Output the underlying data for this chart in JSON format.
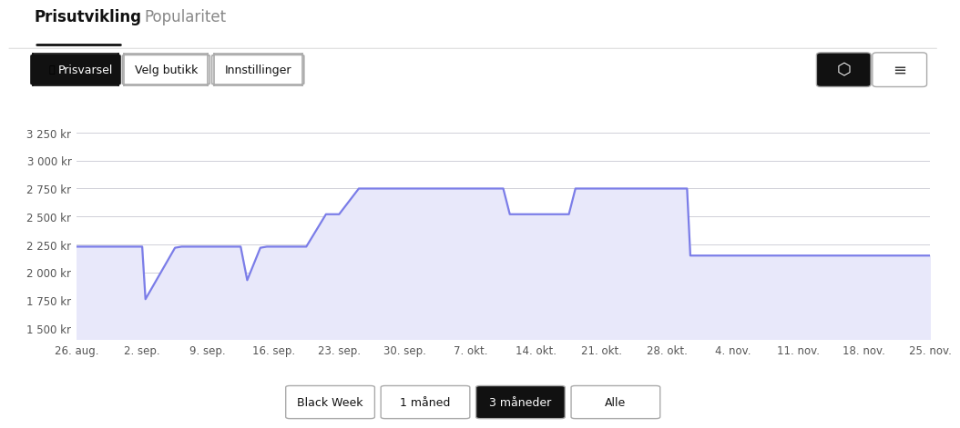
{
  "title": "Prisutvikling",
  "tab2": "Popularitet",
  "y_ticks": [
    1500,
    1750,
    2000,
    2250,
    2500,
    2750,
    3000,
    3250
  ],
  "y_labels": [
    "1 500 kr",
    "1 750 kr",
    "2 000 kr",
    "2 250 kr",
    "2 500 kr",
    "2 750 kr",
    "3 000 kr",
    "3 250 kr"
  ],
  "x_labels": [
    "26. aug.",
    "2. sep.",
    "9. sep.",
    "16. sep.",
    "23. sep.",
    "30. sep.",
    "7. okt.",
    "14. okt.",
    "21. okt.",
    "28. okt.",
    "4. nov.",
    "11. nov.",
    "18. nov.",
    "25. nov."
  ],
  "ylim": [
    1400,
    3400
  ],
  "xlim": [
    0,
    13
  ],
  "line_color": "#7B7DE8",
  "fill_color": "#E8E8FA",
  "bg_color": "#ffffff",
  "grid_color": "#d0d0d8",
  "price_data": [
    [
      0.0,
      2230
    ],
    [
      0.9,
      2230
    ],
    [
      1.0,
      2230
    ],
    [
      1.05,
      1760
    ],
    [
      1.5,
      2220
    ],
    [
      1.6,
      2230
    ],
    [
      2.5,
      2230
    ],
    [
      2.6,
      1930
    ],
    [
      2.8,
      2220
    ],
    [
      2.9,
      2230
    ],
    [
      3.5,
      2230
    ],
    [
      3.8,
      2520
    ],
    [
      4.0,
      2520
    ],
    [
      4.3,
      2750
    ],
    [
      4.5,
      2750
    ],
    [
      6.5,
      2750
    ],
    [
      6.6,
      2520
    ],
    [
      7.5,
      2520
    ],
    [
      7.6,
      2750
    ],
    [
      8.5,
      2750
    ],
    [
      9.2,
      2750
    ],
    [
      9.3,
      2750
    ],
    [
      9.35,
      2150
    ],
    [
      10.0,
      2150
    ],
    [
      13.0,
      2150
    ]
  ],
  "buttons_bottom": [
    "Black Week",
    "1 måned",
    "3 måneder",
    "Alle"
  ],
  "active_button_bottom": "3 måneder",
  "button_top_left": [
    "Prisvarsel",
    "Velg butikk",
    "Innstillinger"
  ],
  "active_button_top": "Prisvarsel"
}
